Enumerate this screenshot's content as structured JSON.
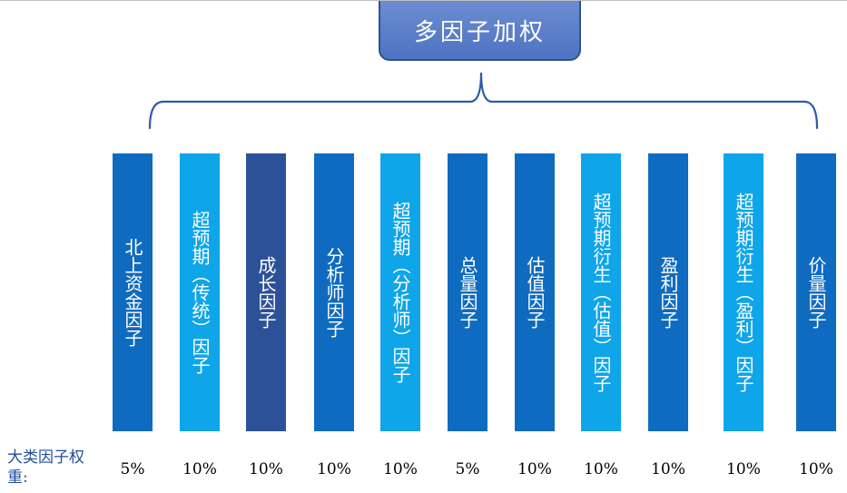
{
  "title": "多因子加权",
  "weight_label": "大类因子权重:",
  "factors": [
    {
      "label": "北上资金因子",
      "weight": "5%",
      "color": "#0f6bbf"
    },
    {
      "label": "超预期（传统）因子",
      "weight": "10%",
      "color": "#0fa5e9"
    },
    {
      "label": "成长因子",
      "weight": "10%",
      "color": "#2d5199"
    },
    {
      "label": "分析师因子",
      "weight": "10%",
      "color": "#0f6bbf"
    },
    {
      "label": "超预期（分析师）因子",
      "weight": "10%",
      "color": "#0fa5e9"
    },
    {
      "label": "总量因子",
      "weight": "5%",
      "color": "#0f6bbf"
    },
    {
      "label": "估值因子",
      "weight": "10%",
      "color": "#0f6bbf"
    },
    {
      "label": "超预期衍生（估值）因子",
      "weight": "10%",
      "color": "#0fa5e9"
    },
    {
      "label": "盈利因子",
      "weight": "10%",
      "color": "#0f6bbf"
    },
    {
      "label": "超预期衍生（盈利）因子",
      "weight": "10%",
      "color": "#0fa5e9"
    },
    {
      "label": "价量因子",
      "weight": "10%",
      "color": "#0f6bbf"
    }
  ]
}
